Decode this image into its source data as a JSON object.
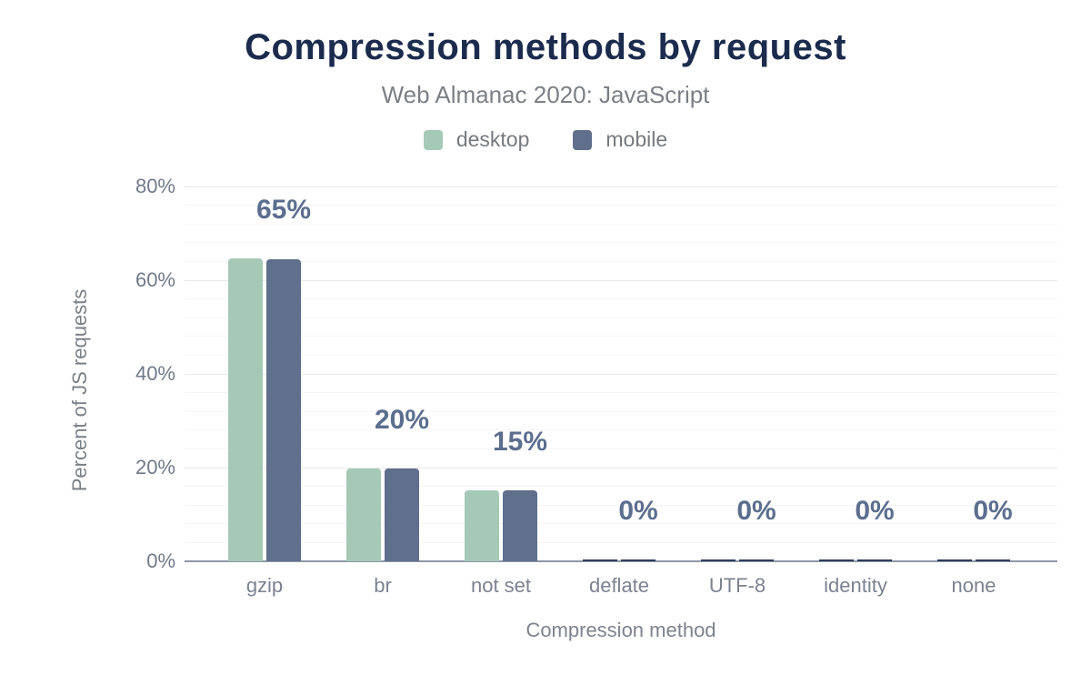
{
  "header": {
    "title": "Compression methods by request",
    "subtitle": "Web Almanac 2020: JavaScript"
  },
  "legend": {
    "items": [
      {
        "label": "desktop",
        "color": "#a6c9b7"
      },
      {
        "label": "mobile",
        "color": "#5f6f8c"
      }
    ]
  },
  "colors": {
    "title": "#1b2b4d",
    "data_label": "#5b6e8e",
    "axis_line": "#8e97a8",
    "zero_stub": "#2e3d5c",
    "major_grid": "#e8e8e8",
    "minor_grid": "#f5f5f5"
  },
  "chart_data": {
    "type": "bar",
    "title": "Compression methods by request",
    "subtitle": "Web Almanac 2020: JavaScript",
    "categories": [
      "gzip",
      "br",
      "not set",
      "deflate",
      "UTF-8",
      "identity",
      "none"
    ],
    "series": [
      {
        "name": "desktop",
        "color": "#a6c9b7",
        "values": [
          64.6,
          19.9,
          15.1,
          0,
          0,
          0,
          0
        ]
      },
      {
        "name": "mobile",
        "color": "#5f6f8c",
        "values": [
          64.5,
          19.9,
          15.1,
          0,
          0,
          0,
          0
        ]
      }
    ],
    "data_labels": [
      "65%",
      "20%",
      "15%",
      "0%",
      "0%",
      "0%",
      "0%"
    ],
    "xlabel": "Compression method",
    "ylabel": "Percent of JS requests",
    "y_ticks": [
      {
        "label": "0%",
        "value": 0
      },
      {
        "label": "20%",
        "value": 20
      },
      {
        "label": "40%",
        "value": 40
      },
      {
        "label": "60%",
        "value": 60
      },
      {
        "label": "80%",
        "value": 80
      }
    ],
    "ylim": [
      0,
      80
    ],
    "minor_grid_step": 4,
    "grid": "horizontal",
    "legend_position": "top"
  }
}
